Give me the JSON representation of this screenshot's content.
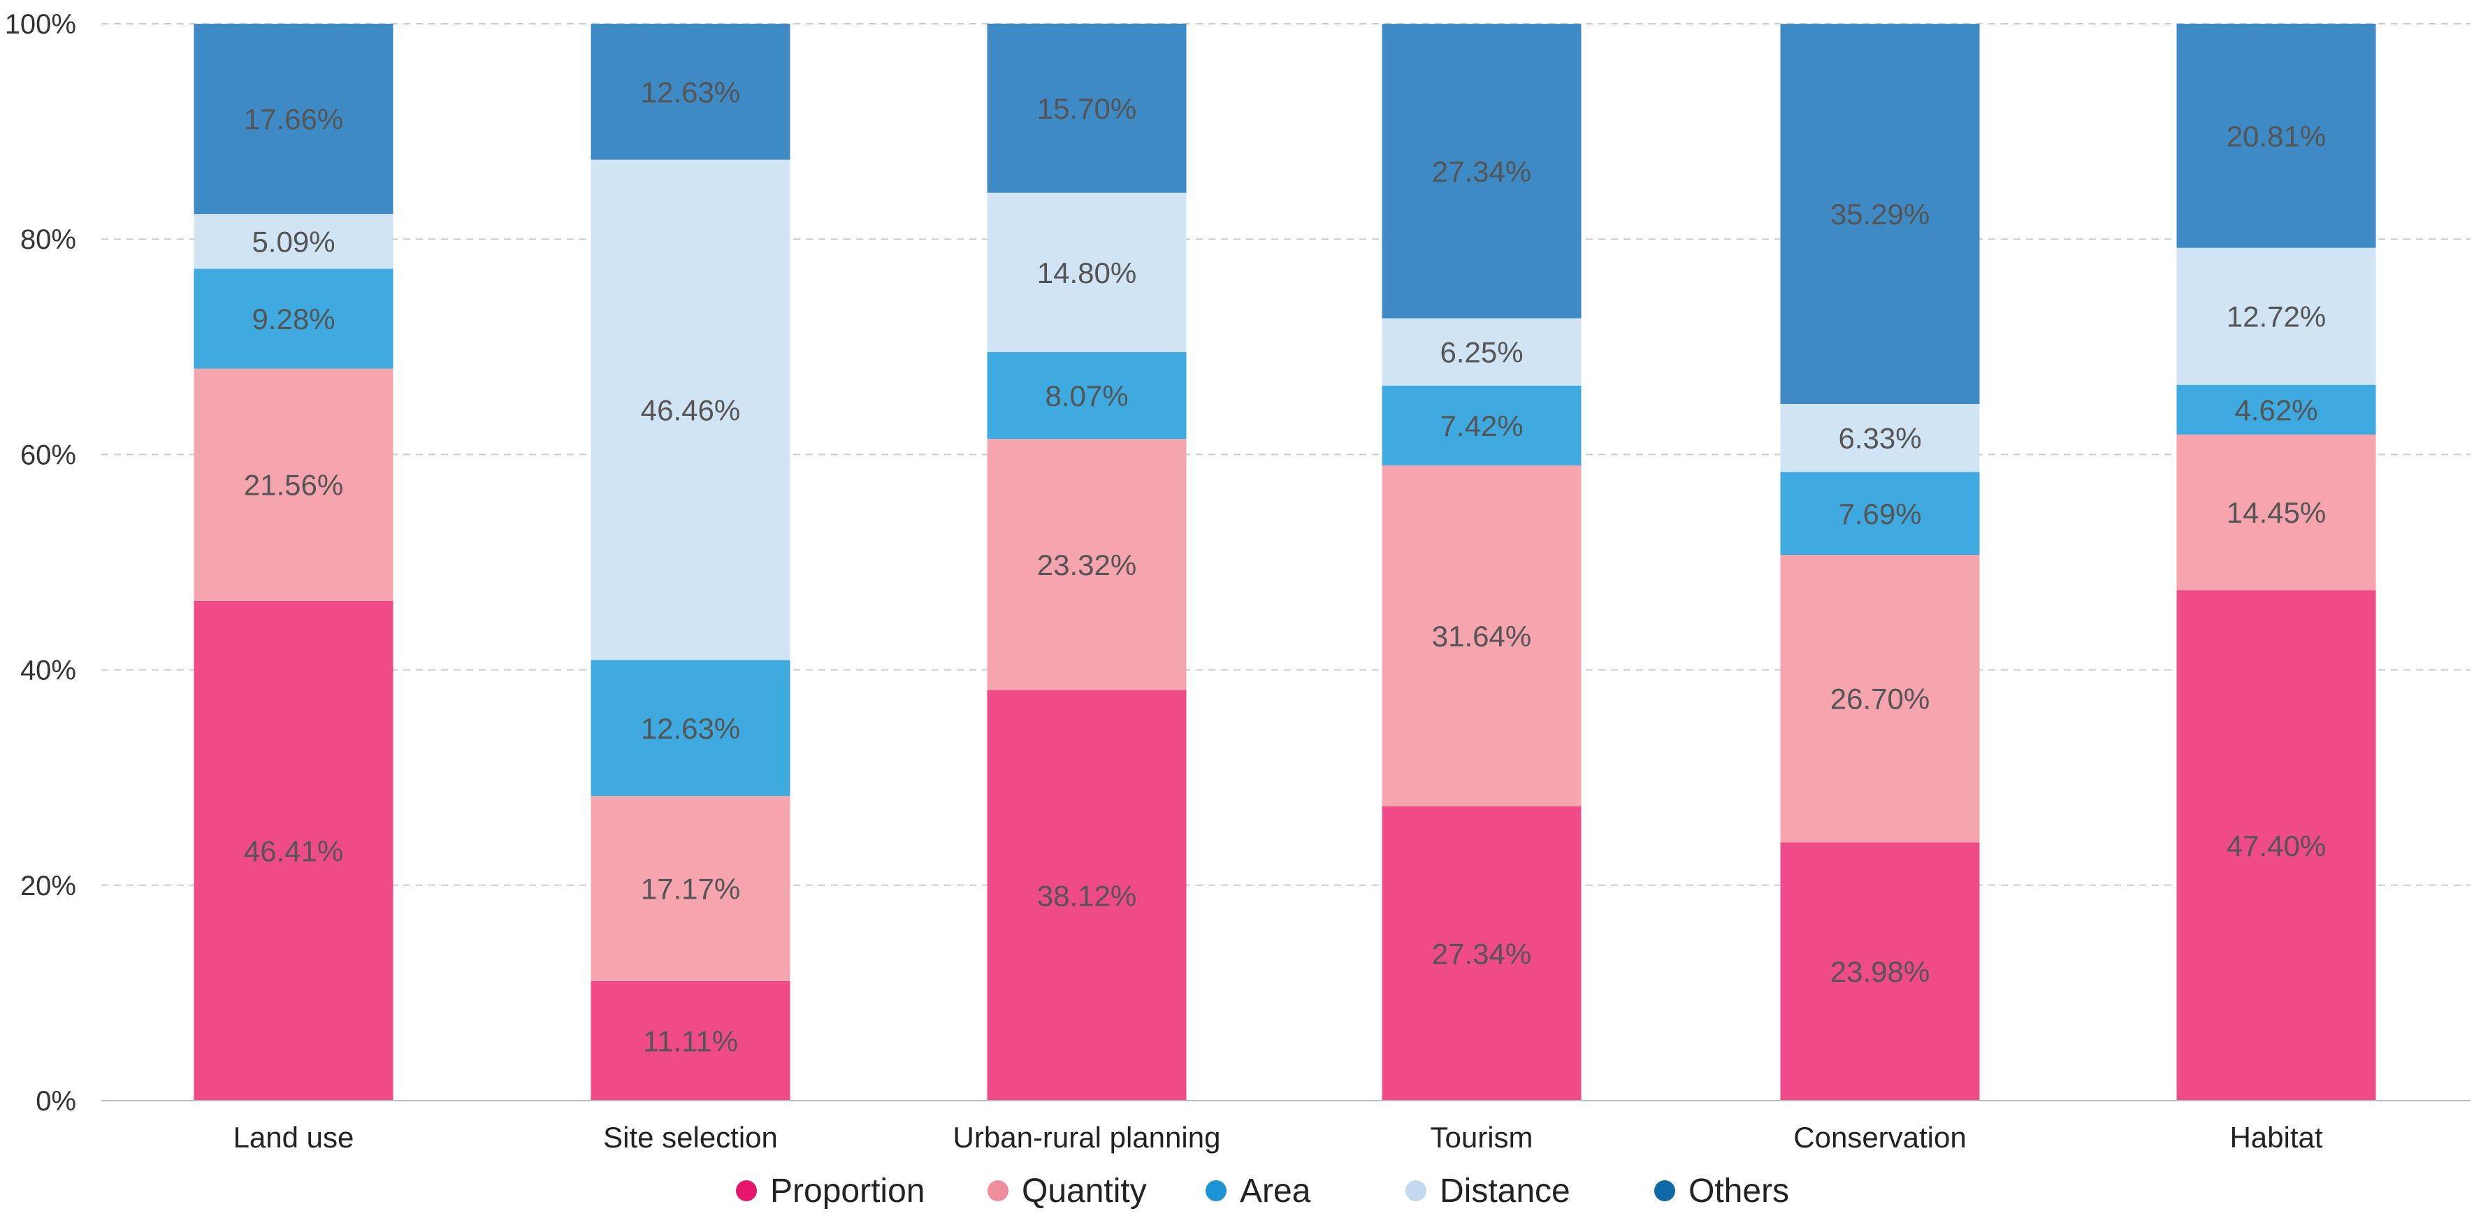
{
  "chart_data": {
    "type": "bar",
    "stacked": true,
    "categories": [
      "Land use",
      "Site selection",
      "Urban-rural planning",
      "Tourism",
      "Conservation",
      "Habitat"
    ],
    "series": [
      {
        "name": "Proportion",
        "color": "#EF4B88",
        "legend_color": "#E5156B",
        "values": [
          46.41,
          11.11,
          38.12,
          27.34,
          23.98,
          47.4
        ],
        "labels": [
          "46.41%",
          "11.11%",
          "38.12%",
          "27.34%",
          "23.98%",
          "47.40%"
        ]
      },
      {
        "name": "Quantity",
        "color": "#F6A4AE",
        "legend_color": "#F08D9C",
        "values": [
          21.56,
          17.17,
          23.32,
          31.64,
          26.7,
          14.45
        ],
        "labels": [
          "21.56%",
          "17.17%",
          "23.32%",
          "31.64%",
          "26.70%",
          "14.45%"
        ]
      },
      {
        "name": "Area",
        "color": "#3EAADF",
        "legend_color": "#1C93D3",
        "values": [
          9.28,
          12.63,
          8.07,
          7.42,
          7.69,
          4.62
        ],
        "labels": [
          "9.28%",
          "12.63%",
          "8.07%",
          "7.42%",
          "7.69%",
          "4.62%"
        ]
      },
      {
        "name": "Distance",
        "color": "#D1E4F4",
        "legend_color": "#C2DAF0",
        "values": [
          5.09,
          46.46,
          14.8,
          6.25,
          6.33,
          12.72
        ],
        "labels": [
          "5.09%",
          "46.46%",
          "14.80%",
          "6.25%",
          "6.33%",
          "12.72%"
        ]
      },
      {
        "name": "Others",
        "color": "#3E8AC4",
        "legend_color": "#0F6AA8",
        "values": [
          17.66,
          12.63,
          15.7,
          27.34,
          35.29,
          20.81
        ],
        "labels": [
          "17.66%",
          "12.63%",
          "15.70%",
          "27.34%",
          "35.29%",
          "20.81%"
        ]
      }
    ],
    "yticks": [
      "0%",
      "20%",
      "40%",
      "60%",
      "80%",
      "100%"
    ],
    "ylim": [
      0,
      100
    ],
    "grid": true,
    "legend_position": "bottom-center",
    "title": "",
    "xlabel": "",
    "ylabel": ""
  }
}
